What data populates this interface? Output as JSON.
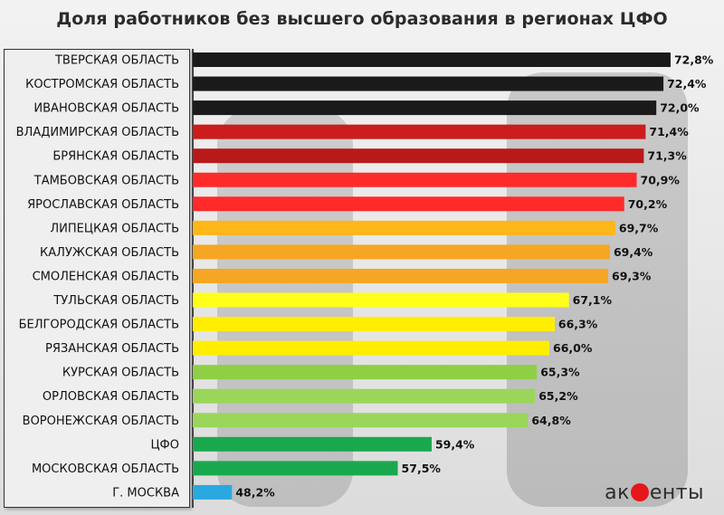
{
  "title": "Доля работников без высшего образования в регионах ЦФО",
  "logo": {
    "text": "акценты",
    "accent_color": "#e5161c"
  },
  "chart_data": {
    "type": "bar",
    "orientation": "horizontal",
    "title": "Доля работников без высшего образования в регионах ЦФО",
    "xlabel": "",
    "ylabel": "",
    "value_suffix": "%",
    "xlim": [
      46,
      73
    ],
    "categories": [
      "ТВЕРСКАЯ ОБЛАСТЬ",
      "КОСТРОМСКАЯ ОБЛАСТЬ",
      "ИВАНОВСКАЯ ОБЛАСТЬ",
      "ВЛАДИМИРСКАЯ ОБЛАСТЬ",
      "БРЯНСКАЯ ОБЛАСТЬ",
      "ТАМБОВСКАЯ ОБЛАСТЬ",
      "ЯРОСЛАВСКАЯ ОБЛАСТЬ",
      "ЛИПЕЦКАЯ ОБЛАСТЬ",
      "КАЛУЖСКАЯ ОБЛАСТЬ",
      "СМОЛЕНСКАЯ ОБЛАСТЬ",
      "ТУЛЬСКАЯ ОБЛАСТЬ",
      "БЕЛГОРОДСКАЯ ОБЛАСТЬ",
      "РЯЗАНСКАЯ ОБЛАСТЬ",
      "КУРСКАЯ ОБЛАСТЬ",
      "ОРЛОВСКАЯ ОБЛАСТЬ",
      "ВОРОНЕЖСКАЯ ОБЛАСТЬ",
      "ЦФО",
      "МОСКОВСКАЯ ОБЛАСТЬ",
      "Г. МОСКВА"
    ],
    "values": [
      72.8,
      72.4,
      72.0,
      71.4,
      71.3,
      70.9,
      70.2,
      69.7,
      69.4,
      69.3,
      67.1,
      66.3,
      66.0,
      65.3,
      65.2,
      64.8,
      59.4,
      57.5,
      48.2
    ],
    "value_labels": [
      "72,8%",
      "72,4%",
      "72,0%",
      "71,4%",
      "71,3%",
      "70,9%",
      "70,2%",
      "69,7%",
      "69,4%",
      "69,3%",
      "67,1%",
      "66,3%",
      "66,0%",
      "65,3%",
      "65,2%",
      "64,8%",
      "59,4%",
      "57,5%",
      "48,2%"
    ],
    "colors": [
      "#1a1a1a",
      "#1a1a1a",
      "#1a1a1a",
      "#cc1c1c",
      "#b81a1a",
      "#ff2a2a",
      "#ff2a2a",
      "#ffb619",
      "#f5a623",
      "#f5a623",
      "#ffff1a",
      "#ffee00",
      "#ffee00",
      "#8fcf45",
      "#9ad65a",
      "#9ad65a",
      "#1aa84f",
      "#1aa84f",
      "#2aa8e0"
    ]
  }
}
